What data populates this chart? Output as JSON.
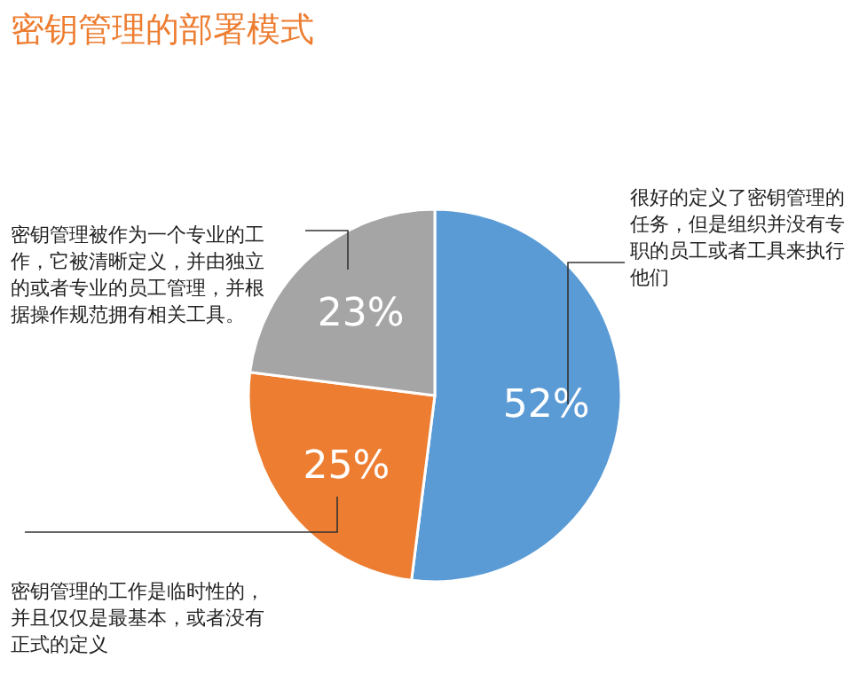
{
  "chart_data": {
    "type": "pie",
    "title": "密钥管理的部署模式",
    "categories": [
      "很好的定义了密钥管理的任务，但是组织并没有专职的员工或者工具来执行他们",
      "密钥管理的工作是临时性的，并且仅仅是最基本，或者没有正式的定义",
      "密钥管理被作为一个专业的工作，它被清晰定义，并由独立的或者专业的员工管理，并根据操作规范拥有相关工具。"
    ],
    "values": [
      52,
      25,
      23
    ],
    "colors": [
      "#5b9bd5",
      "#ed7d31",
      "#a5a5a5"
    ],
    "value_labels": [
      "52%",
      "25%",
      "23%"
    ]
  }
}
